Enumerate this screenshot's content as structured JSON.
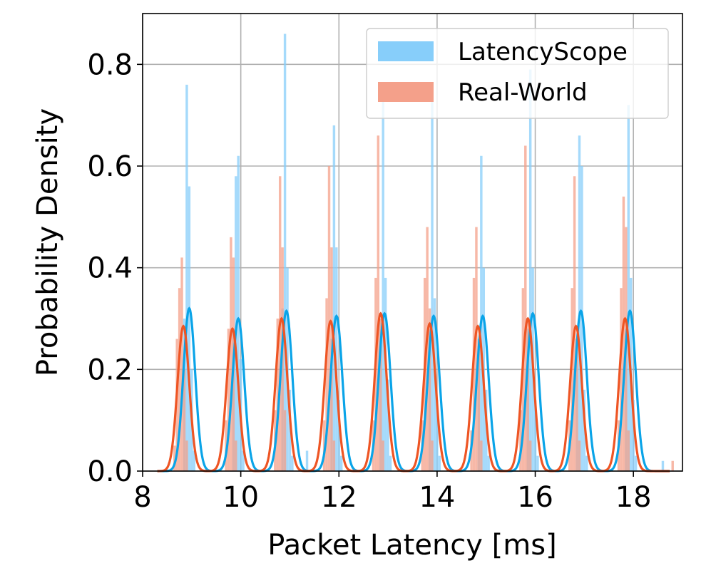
{
  "chart_data": {
    "type": "bar",
    "title": "",
    "xlabel": "Packet Latency [ms]",
    "ylabel": "Probability Density",
    "xlim": [
      8,
      19
    ],
    "ylim": [
      0,
      0.9
    ],
    "xticks": [
      8,
      10,
      12,
      14,
      16,
      18
    ],
    "yticks": [
      0.0,
      0.2,
      0.4,
      0.6,
      0.8
    ],
    "xtick_labels": [
      "8",
      "10",
      "12",
      "14",
      "16",
      "18"
    ],
    "ytick_labels": [
      "0.0",
      "0.2",
      "0.4",
      "0.6",
      "0.8"
    ],
    "grid": true,
    "legend_position": "top-right",
    "bin_width": 0.05,
    "series": [
      {
        "name": "LatencyScope",
        "kind": "histogram",
        "color": "#87CEFA",
        "x": [
          8.85,
          8.9,
          8.95,
          9.0,
          9.05,
          9.85,
          9.9,
          9.95,
          10.0,
          10.05,
          10.85,
          10.9,
          10.95,
          11.0,
          11.05,
          11.35,
          11.85,
          11.9,
          11.95,
          12.0,
          12.05,
          12.85,
          12.9,
          12.95,
          13.0,
          13.05,
          13.85,
          13.9,
          13.95,
          14.0,
          14.05,
          14.85,
          14.9,
          14.95,
          15.0,
          15.05,
          15.85,
          15.9,
          15.95,
          16.0,
          16.05,
          16.85,
          16.9,
          16.95,
          17.0,
          17.05,
          17.85,
          17.9,
          17.95,
          18.0,
          18.05,
          18.6
        ],
        "values": [
          0.3,
          0.76,
          0.56,
          0.2,
          0.04,
          0.28,
          0.58,
          0.62,
          0.22,
          0.04,
          0.32,
          0.86,
          0.4,
          0.16,
          0.03,
          0.04,
          0.26,
          0.68,
          0.44,
          0.14,
          0.03,
          0.3,
          0.74,
          0.38,
          0.18,
          0.03,
          0.28,
          0.76,
          0.34,
          0.14,
          0.03,
          0.26,
          0.62,
          0.4,
          0.16,
          0.03,
          0.28,
          0.79,
          0.4,
          0.14,
          0.03,
          0.26,
          0.66,
          0.6,
          0.16,
          0.03,
          0.28,
          0.72,
          0.38,
          0.14,
          0.03,
          0.02
        ]
      },
      {
        "name": "Real-World",
        "kind": "histogram",
        "color": "#F4A08A",
        "x": [
          8.65,
          8.7,
          8.75,
          8.8,
          8.85,
          8.9,
          9.7,
          9.75,
          9.8,
          9.85,
          9.9,
          10.7,
          10.75,
          10.8,
          10.85,
          10.9,
          11.7,
          11.75,
          11.8,
          11.85,
          11.9,
          12.7,
          12.75,
          12.8,
          12.85,
          12.9,
          13.7,
          13.75,
          13.8,
          13.85,
          13.9,
          14.7,
          14.75,
          14.8,
          14.85,
          14.9,
          15.7,
          15.75,
          15.8,
          15.85,
          15.9,
          16.7,
          16.75,
          16.8,
          16.85,
          16.9,
          17.7,
          17.75,
          17.8,
          17.85,
          17.9,
          18.8
        ],
        "values": [
          0.05,
          0.26,
          0.36,
          0.42,
          0.2,
          0.06,
          0.1,
          0.28,
          0.46,
          0.42,
          0.06,
          0.12,
          0.3,
          0.58,
          0.44,
          0.12,
          0.1,
          0.34,
          0.6,
          0.44,
          0.06,
          0.1,
          0.38,
          0.66,
          0.3,
          0.06,
          0.1,
          0.38,
          0.48,
          0.32,
          0.06,
          0.08,
          0.38,
          0.48,
          0.24,
          0.06,
          0.12,
          0.36,
          0.64,
          0.3,
          0.06,
          0.1,
          0.36,
          0.58,
          0.26,
          0.06,
          0.1,
          0.36,
          0.54,
          0.48,
          0.08,
          0.02
        ]
      },
      {
        "name": "LatencyScope",
        "kind": "kde",
        "color": "#0AA4E8",
        "peak_centers": [
          8.95,
          9.95,
          10.93,
          11.95,
          12.93,
          13.93,
          14.93,
          15.95,
          16.93,
          17.93
        ],
        "peak_heights": [
          0.32,
          0.3,
          0.315,
          0.305,
          0.31,
          0.305,
          0.305,
          0.31,
          0.315,
          0.315
        ],
        "peak_sigma": 0.12
      },
      {
        "name": "Real-World",
        "kind": "kde",
        "color": "#EE5524",
        "peak_centers": [
          8.83,
          9.83,
          10.83,
          11.83,
          12.85,
          13.85,
          14.83,
          15.85,
          16.83,
          17.83
        ],
        "peak_heights": [
          0.285,
          0.28,
          0.3,
          0.295,
          0.31,
          0.29,
          0.285,
          0.3,
          0.285,
          0.3
        ],
        "peak_sigma": 0.12
      }
    ]
  }
}
